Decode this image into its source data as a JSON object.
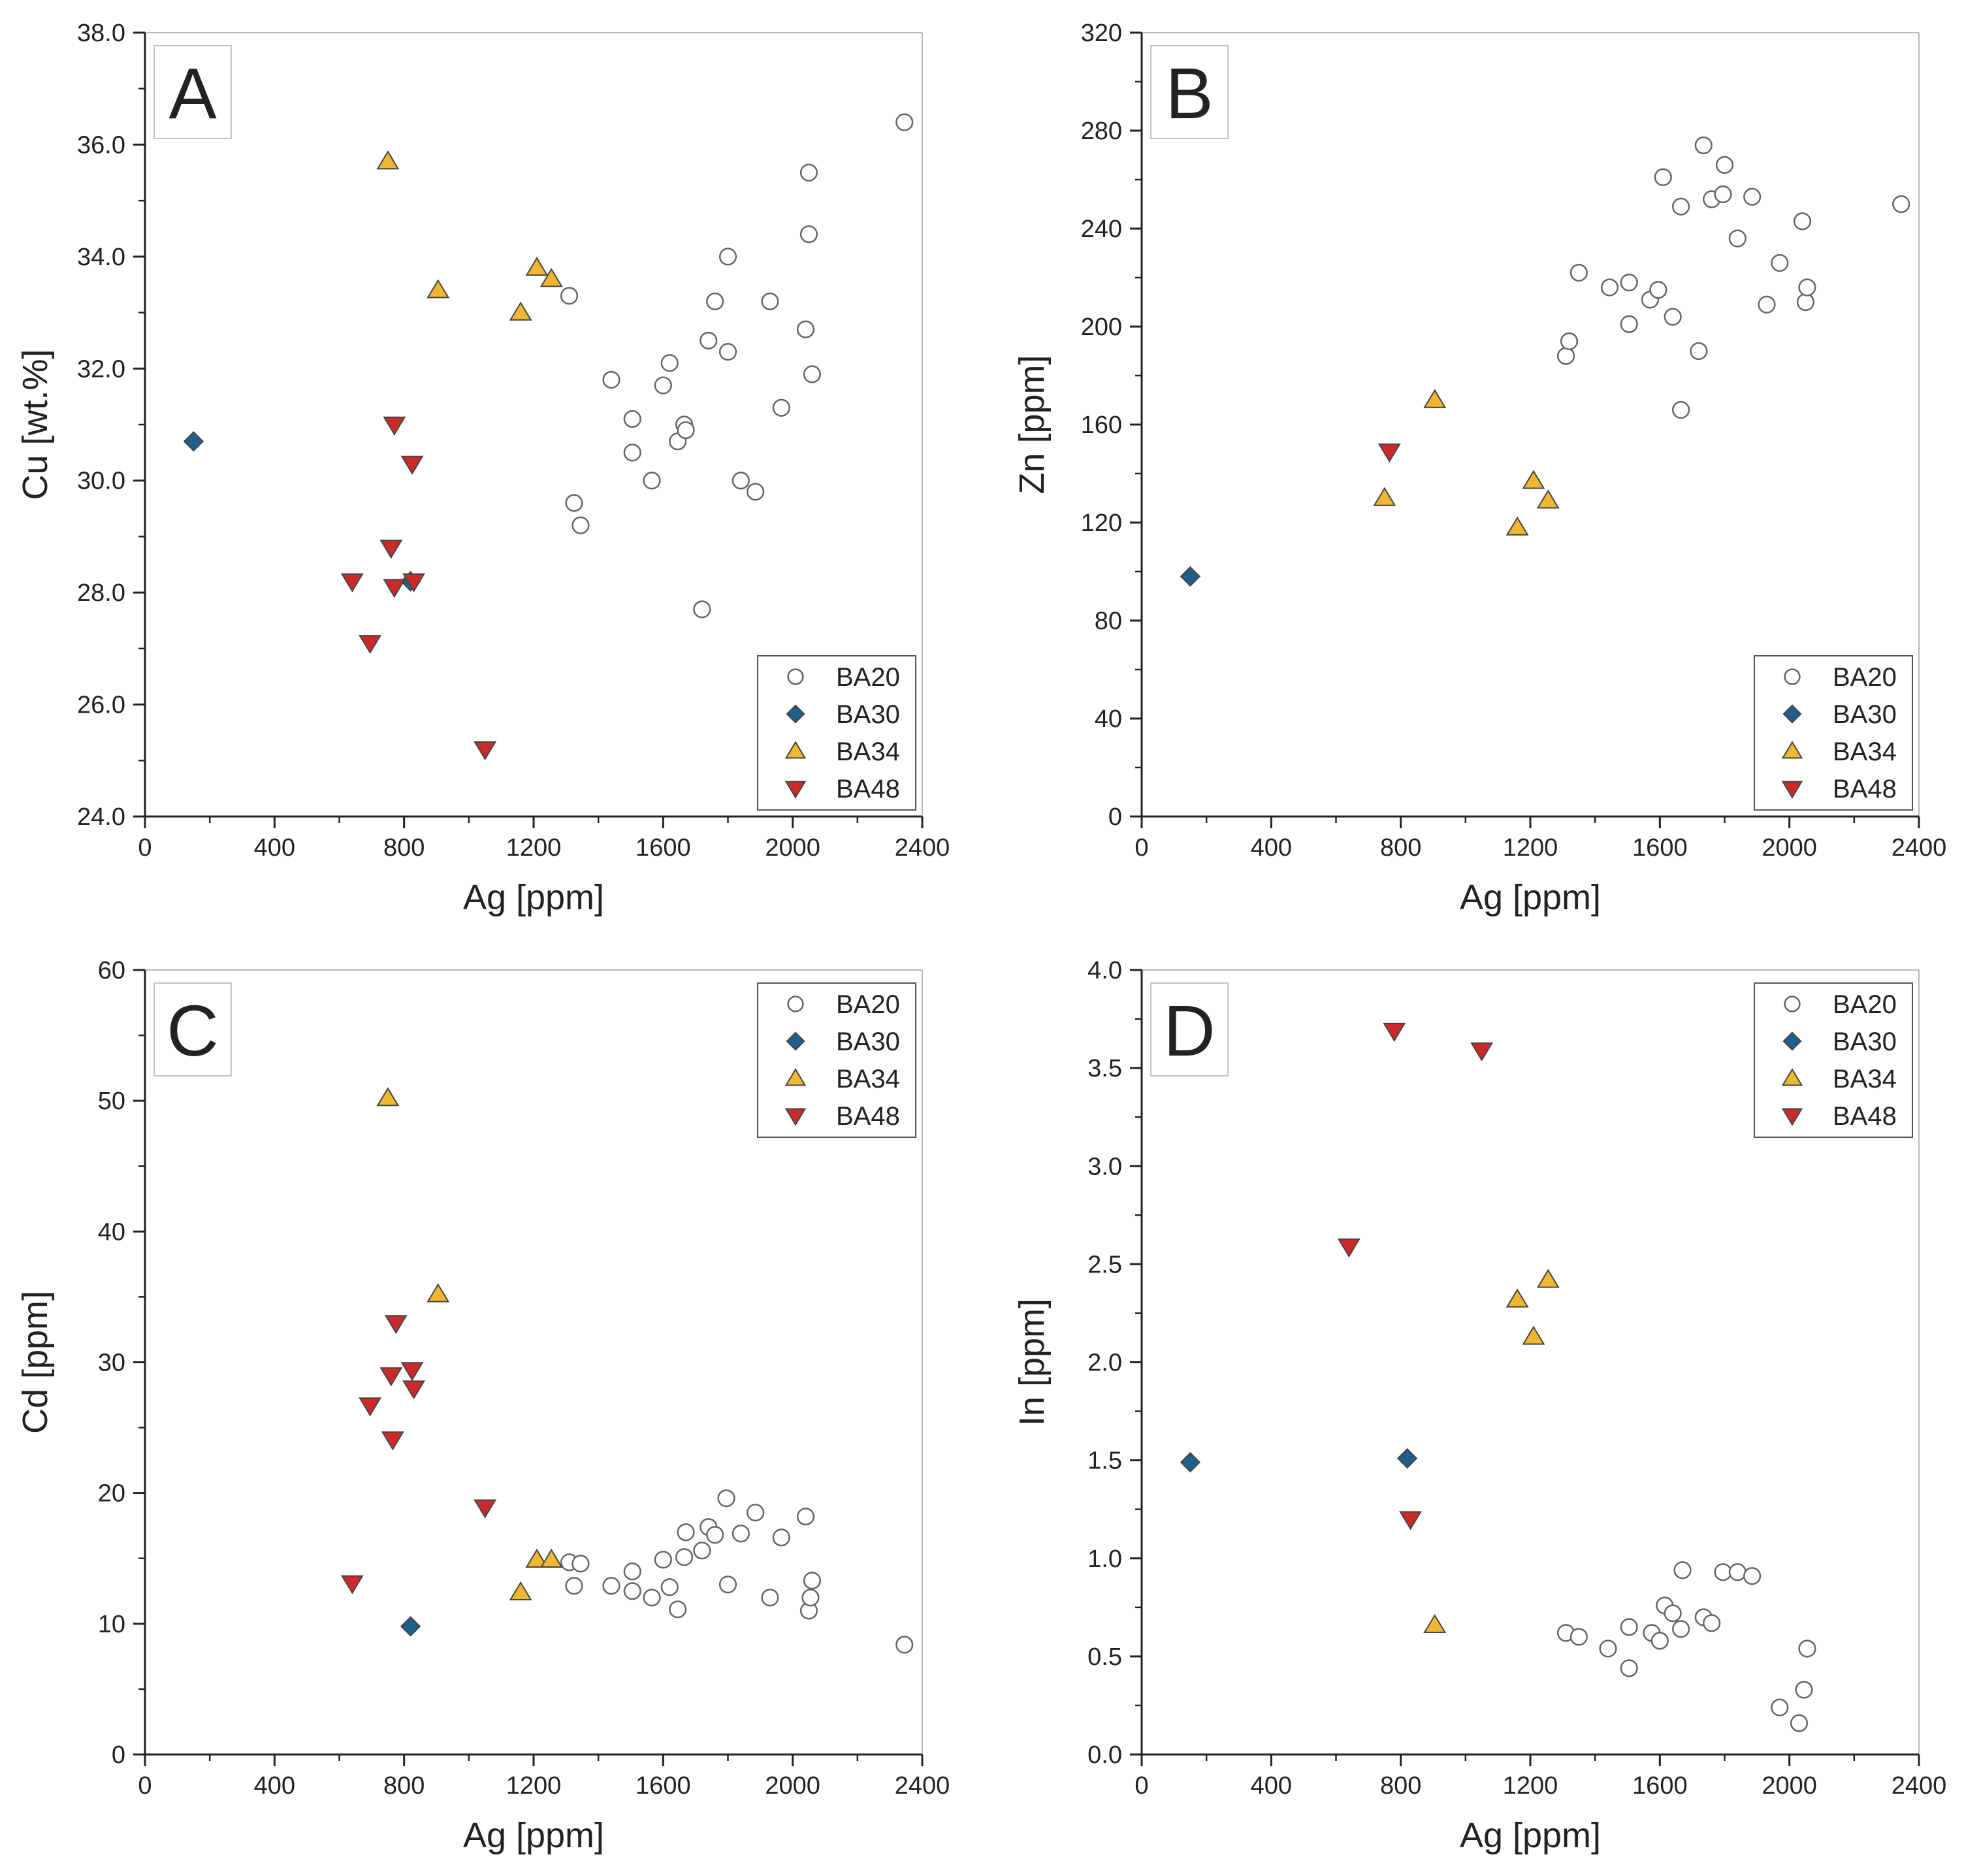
{
  "chart_data": [
    {
      "type": "scatter",
      "panel_label": "A",
      "xlabel": "Ag [ppm]",
      "ylabel": "Cu [wt.%]",
      "xlim": [
        0,
        2400
      ],
      "ylim": [
        24,
        38
      ],
      "xticks": [
        0,
        400,
        800,
        1200,
        1600,
        2000,
        2400
      ],
      "xtick_labels": [
        "0",
        "400",
        "800",
        "1200",
        "1600",
        "2000",
        "2400"
      ],
      "yticks": [
        24,
        26,
        28,
        30,
        32,
        34,
        36,
        38
      ],
      "ytick_labels": [
        "24.0",
        "26.0",
        "28.0",
        "30.0",
        "32.0",
        "34.0",
        "36.0",
        "38.0"
      ],
      "legend_position": "bottom-right",
      "series": [
        {
          "name": "BA20",
          "marker": "circle",
          "color": "#ffffff",
          "x": [
            1310,
            1325,
            1345,
            1440,
            1505,
            1505,
            1565,
            1600,
            1620,
            1645,
            1665,
            1670,
            1720,
            1740,
            1760,
            1800,
            1800,
            1840,
            1885,
            1930,
            1965,
            2040,
            2050,
            2050,
            2060,
            2345
          ],
          "y": [
            33.3,
            29.6,
            29.2,
            31.8,
            31.1,
            30.5,
            30.0,
            31.7,
            32.1,
            30.7,
            31.0,
            30.9,
            27.7,
            32.5,
            33.2,
            34.0,
            32.3,
            30.0,
            29.8,
            33.2,
            31.3,
            32.7,
            35.5,
            34.4,
            31.9,
            36.4
          ]
        },
        {
          "name": "BA30",
          "marker": "diamond",
          "color": "#1f5f8b",
          "x": [
            150,
            820
          ],
          "y": [
            30.7,
            28.2
          ]
        },
        {
          "name": "BA34",
          "marker": "triangle-up",
          "color": "#f0b732",
          "x": [
            750,
            905,
            1160,
            1210,
            1255
          ],
          "y": [
            35.7,
            33.4,
            33.0,
            33.8,
            33.6
          ]
        },
        {
          "name": "BA48",
          "marker": "triangle-down",
          "color": "#cc2a2a",
          "x": [
            640,
            695,
            760,
            770,
            770,
            825,
            830,
            1050
          ],
          "y": [
            28.2,
            27.1,
            28.8,
            31.0,
            28.1,
            30.3,
            28.2,
            25.2
          ]
        }
      ]
    },
    {
      "type": "scatter",
      "panel_label": "B",
      "xlabel": "Ag [ppm]",
      "ylabel": "Zn [ppm]",
      "xlim": [
        0,
        2400
      ],
      "ylim": [
        0,
        320
      ],
      "xticks": [
        0,
        400,
        800,
        1200,
        1600,
        2000,
        2400
      ],
      "xtick_labels": [
        "0",
        "400",
        "800",
        "1200",
        "1600",
        "2000",
        "2400"
      ],
      "yticks": [
        0,
        40,
        80,
        120,
        160,
        200,
        240,
        280,
        320
      ],
      "ytick_labels": [
        "0",
        "40",
        "80",
        "120",
        "160",
        "200",
        "240",
        "280",
        "320"
      ],
      "legend_position": "bottom-right",
      "series": [
        {
          "name": "BA20",
          "marker": "circle",
          "color": "#ffffff",
          "x": [
            1310,
            1320,
            1350,
            1445,
            1505,
            1505,
            1570,
            1595,
            1610,
            1640,
            1665,
            1665,
            1720,
            1735,
            1760,
            1795,
            1800,
            1840,
            1885,
            1930,
            1970,
            2040,
            2050,
            2055,
            2345
          ],
          "y": [
            188,
            194,
            222,
            216,
            201,
            218,
            211,
            215,
            261,
            204,
            249,
            166,
            190,
            274,
            252,
            254,
            266,
            236,
            253,
            209,
            226,
            243,
            210,
            216,
            250
          ]
        },
        {
          "name": "BA30",
          "marker": "diamond",
          "color": "#1f5f8b",
          "x": [
            150
          ],
          "y": [
            98
          ]
        },
        {
          "name": "BA34",
          "marker": "triangle-up",
          "color": "#f0b732",
          "x": [
            750,
            905,
            1160,
            1210,
            1255
          ],
          "y": [
            130,
            170,
            118,
            137,
            129
          ]
        },
        {
          "name": "BA48",
          "marker": "triangle-down",
          "color": "#cc2a2a",
          "x": [
            765
          ],
          "y": [
            149
          ]
        }
      ]
    },
    {
      "type": "scatter",
      "panel_label": "C",
      "xlabel": "Ag [ppm]",
      "ylabel": "Cd [ppm]",
      "xlim": [
        0,
        2400
      ],
      "ylim": [
        0,
        60
      ],
      "xticks": [
        0,
        400,
        800,
        1200,
        1600,
        2000,
        2400
      ],
      "xtick_labels": [
        "0",
        "400",
        "800",
        "1200",
        "1600",
        "2000",
        "2400"
      ],
      "yticks": [
        0,
        10,
        20,
        30,
        40,
        50,
        60
      ],
      "ytick_labels": [
        "0",
        "10",
        "20",
        "30",
        "40",
        "50",
        "60"
      ],
      "legend_position": "top-right",
      "series": [
        {
          "name": "BA20",
          "marker": "circle",
          "color": "#ffffff",
          "x": [
            1310,
            1325,
            1345,
            1440,
            1505,
            1505,
            1565,
            1600,
            1620,
            1645,
            1665,
            1670,
            1720,
            1740,
            1760,
            1795,
            1800,
            1840,
            1885,
            1930,
            1965,
            2040,
            2050,
            2055,
            2060,
            2345
          ],
          "y": [
            14.7,
            12.9,
            14.6,
            12.9,
            14.0,
            12.5,
            12.0,
            14.9,
            12.8,
            11.1,
            15.1,
            17.0,
            15.6,
            17.4,
            16.8,
            19.6,
            13.0,
            16.9,
            18.5,
            12.0,
            16.6,
            18.2,
            11.0,
            12.0,
            13.3,
            8.4
          ]
        },
        {
          "name": "BA30",
          "marker": "diamond",
          "color": "#1f5f8b",
          "x": [
            820
          ],
          "y": [
            9.8
          ]
        },
        {
          "name": "BA34",
          "marker": "triangle-up",
          "color": "#f0b732",
          "x": [
            750,
            905,
            1160,
            1210,
            1255
          ],
          "y": [
            50.2,
            35.2,
            12.4,
            14.9,
            14.9
          ]
        },
        {
          "name": "BA48",
          "marker": "triangle-down",
          "color": "#cc2a2a",
          "x": [
            640,
            695,
            760,
            765,
            775,
            825,
            830,
            1050
          ],
          "y": [
            13.1,
            26.7,
            29.0,
            24.1,
            33.0,
            29.4,
            28.0,
            18.9
          ]
        }
      ]
    },
    {
      "type": "scatter",
      "panel_label": "D",
      "xlabel": "Ag [ppm]",
      "ylabel": "In [ppm]",
      "xlim": [
        0,
        2400
      ],
      "ylim": [
        0,
        4
      ],
      "xticks": [
        0,
        400,
        800,
        1200,
        1600,
        2000,
        2400
      ],
      "xtick_labels": [
        "0",
        "400",
        "800",
        "1200",
        "1600",
        "2000",
        "2400"
      ],
      "yticks": [
        0,
        0.5,
        1,
        1.5,
        2,
        2.5,
        3,
        3.5,
        4
      ],
      "ytick_labels": [
        "0.0",
        "0.5",
        "1.0",
        "1.5",
        "2.0",
        "2.5",
        "3.0",
        "3.5",
        "4.0"
      ],
      "legend_position": "top-right",
      "series": [
        {
          "name": "BA20",
          "marker": "circle",
          "color": "#ffffff",
          "x": [
            1310,
            1350,
            1440,
            1505,
            1505,
            1575,
            1600,
            1615,
            1640,
            1665,
            1670,
            1735,
            1760,
            1795,
            1840,
            1885,
            1970,
            2030,
            2045,
            2055
          ],
          "y": [
            0.62,
            0.6,
            0.54,
            0.65,
            0.44,
            0.62,
            0.58,
            0.76,
            0.72,
            0.64,
            0.94,
            0.7,
            0.67,
            0.93,
            0.93,
            0.91,
            0.24,
            0.16,
            0.33,
            0.54
          ]
        },
        {
          "name": "BA30",
          "marker": "diamond",
          "color": "#1f5f8b",
          "x": [
            150,
            820
          ],
          "y": [
            1.49,
            1.51
          ]
        },
        {
          "name": "BA34",
          "marker": "triangle-up",
          "color": "#f0b732",
          "x": [
            905,
            1160,
            1210,
            1255
          ],
          "y": [
            0.66,
            2.32,
            2.13,
            2.42
          ]
        },
        {
          "name": "BA48",
          "marker": "triangle-down",
          "color": "#cc2a2a",
          "x": [
            640,
            780,
            830,
            1050
          ],
          "y": [
            2.59,
            3.69,
            1.2,
            3.59
          ]
        }
      ]
    }
  ]
}
